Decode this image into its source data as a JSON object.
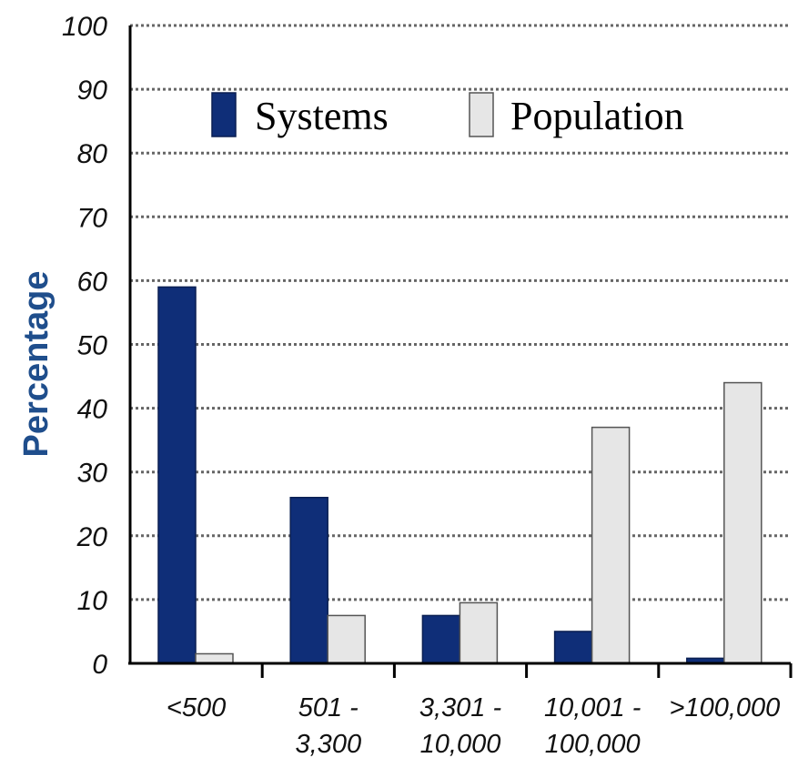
{
  "chart_data": {
    "type": "bar",
    "title": "",
    "xlabel": "",
    "ylabel": "Percentage",
    "ylim": [
      0,
      100
    ],
    "yticks": [
      0,
      10,
      20,
      30,
      40,
      50,
      60,
      70,
      80,
      90,
      100
    ],
    "grid": "horizontal-dotted",
    "legend_position": "top",
    "categories": [
      [
        "<500"
      ],
      [
        "501 -",
        "3,300"
      ],
      [
        "3,301 -",
        "10,000"
      ],
      [
        "10,001 -",
        "100,000"
      ],
      [
        ">100,000"
      ]
    ],
    "series": [
      {
        "name": "Systems",
        "color": "#0f2e78",
        "values": [
          59,
          26,
          7.5,
          5,
          0.8
        ]
      },
      {
        "name": "Population",
        "color": "#e6e6e6",
        "values": [
          1.5,
          7.5,
          9.5,
          37,
          44
        ]
      }
    ]
  }
}
